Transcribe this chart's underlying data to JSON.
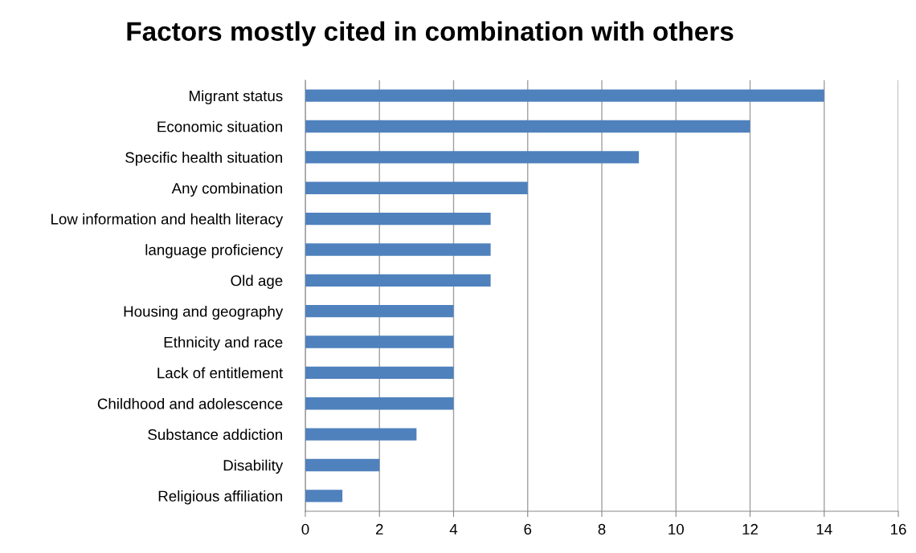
{
  "chart_data": {
    "type": "bar",
    "orientation": "horizontal",
    "title": "Factors mostly cited in combination with others",
    "categories": [
      "Migrant status",
      "Economic situation",
      "Specific health situation",
      "Any combination",
      "Low information and health literacy",
      "language proficiency",
      "Old age",
      "Housing and geography",
      "Ethnicity and race",
      "Lack of entitlement",
      "Childhood and adolescence",
      "Substance addiction",
      "Disability",
      "Religious affiliation"
    ],
    "values": [
      14,
      12,
      9,
      6,
      5,
      5,
      5,
      4,
      4,
      4,
      4,
      3,
      2,
      1
    ],
    "color": "#4f81bd",
    "xlim": [
      0,
      16
    ],
    "xticks": [
      0,
      2,
      4,
      6,
      8,
      10,
      12,
      14,
      16
    ],
    "grid": "x",
    "legend": false
  }
}
